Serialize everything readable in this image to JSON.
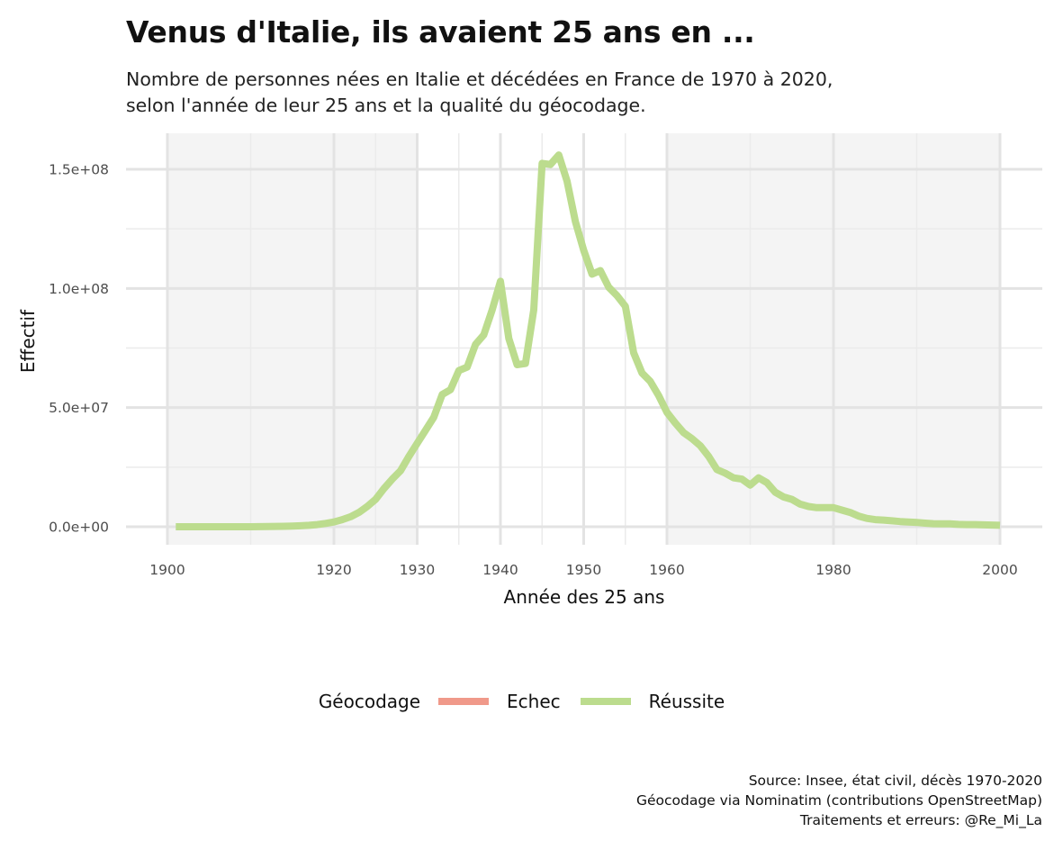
{
  "title": "Venus d'Italie, ils avaient 25 ans en ...",
  "subtitle_lines": [
    "Nombre de personnes nées en Italie et décédées en France de 1970 à 2020,",
    "selon l'année de leur 25 ans et la qualité du géocodage."
  ],
  "caption_lines": [
    "Source: Insee, état civil, décès 1970-2020",
    "Géocodage via Nominatim (contributions OpenStreetMap)",
    "Traitements et erreurs: @Re_Mi_La"
  ],
  "legend": {
    "title": "Géocodage",
    "items": [
      {
        "label": "Echec",
        "color": "#f0998a"
      },
      {
        "label": "Réussite",
        "color": "#bcdc8e"
      }
    ]
  },
  "chart_data": {
    "type": "line",
    "xlabel": "Année des 25 ans",
    "ylabel": "Effectif",
    "xlim": [
      1900,
      2000
    ],
    "ylim": [
      0,
      150000000
    ],
    "x_ticks": [
      1900,
      1920,
      1930,
      1940,
      1950,
      1960,
      1980,
      2000
    ],
    "x_tick_labels": [
      "1900",
      "1920",
      "1930",
      "1940",
      "1950",
      "1960",
      "1980",
      "2000"
    ],
    "y_ticks": [
      0,
      50000000,
      100000000,
      150000000
    ],
    "y_tick_labels": [
      "0.0e+00",
      "5.0e+07",
      "1.0e+08",
      "1.5e+08"
    ],
    "shaded_bands": [
      [
        1900,
        1930
      ],
      [
        1960,
        2000
      ]
    ],
    "grid": true,
    "legend_position": "bottom",
    "series": [
      {
        "name": "Réussite",
        "color": "#bcdc8e",
        "x": [
          1901,
          1905,
          1910,
          1912,
          1914,
          1915,
          1916,
          1917,
          1918,
          1919,
          1920,
          1921,
          1922,
          1923,
          1924,
          1925,
          1926,
          1927,
          1928,
          1929,
          1930,
          1931,
          1932,
          1933,
          1934,
          1935,
          1936,
          1937,
          1938,
          1939,
          1940,
          1941,
          1942,
          1943,
          1944,
          1945,
          1946,
          1947,
          1948,
          1949,
          1950,
          1951,
          1952,
          1953,
          1954,
          1955,
          1956,
          1957,
          1958,
          1959,
          1960,
          1961,
          1962,
          1963,
          1964,
          1965,
          1966,
          1967,
          1968,
          1969,
          1970,
          1971,
          1972,
          1973,
          1974,
          1975,
          1976,
          1977,
          1978,
          1979,
          1980,
          1981,
          1982,
          1983,
          1984,
          1985,
          1986,
          1987,
          1988,
          1989,
          1990,
          1991,
          1992,
          1993,
          1994,
          1995,
          1996,
          1997,
          1998,
          1999,
          2000
        ],
        "y": [
          0,
          0,
          0,
          100000,
          200000,
          300000,
          400000,
          600000,
          900000,
          1400000,
          2000000,
          3000000,
          4200000,
          6000000,
          8500000,
          11500000,
          16000000,
          20000000,
          23500000,
          29500000,
          35000000,
          40500000,
          46000000,
          55500000,
          57500000,
          65500000,
          67000000,
          76500000,
          80500000,
          91000000,
          103000000,
          79000000,
          68000000,
          68500000,
          91000000,
          152500000,
          152000000,
          156000000,
          145000000,
          128000000,
          116000000,
          106000000,
          107500000,
          100500000,
          97000000,
          92500000,
          73000000,
          64500000,
          61000000,
          55000000,
          48000000,
          43500000,
          39500000,
          37000000,
          34000000,
          29500000,
          24000000,
          22500000,
          20500000,
          20000000,
          17500000,
          20500000,
          18500000,
          14500000,
          12500000,
          11500000,
          9500000,
          8500000,
          8000000,
          8000000,
          8000000,
          7000000,
          6000000,
          4500000,
          3500000,
          3000000,
          2800000,
          2500000,
          2200000,
          2000000,
          1800000,
          1500000,
          1300000,
          1200000,
          1200000,
          1000000,
          900000,
          900000,
          800000,
          700000,
          600000
        ]
      }
    ]
  }
}
